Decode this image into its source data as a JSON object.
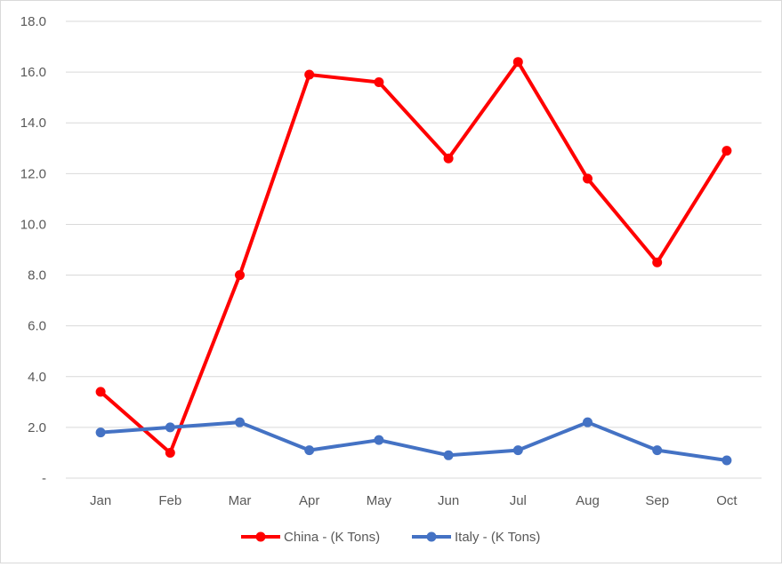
{
  "chart_data": {
    "type": "line",
    "categories": [
      "Jan",
      "Feb",
      "Mar",
      "Apr",
      "May",
      "Jun",
      "Jul",
      "Aug",
      "Sep",
      "Oct"
    ],
    "series": [
      {
        "name": "China - (K Tons)",
        "color": "#ff0000",
        "values": [
          3.4,
          1.0,
          8.0,
          15.9,
          15.6,
          12.6,
          16.4,
          11.8,
          8.5,
          12.9
        ]
      },
      {
        "name": "Italy - (K Tons)",
        "color": "#4472c4",
        "values": [
          1.8,
          2.0,
          2.2,
          1.1,
          1.5,
          0.9,
          1.1,
          2.2,
          1.1,
          0.7
        ]
      }
    ],
    "y_tick_labels": [
      "-",
      "2.0",
      "4.0",
      "6.0",
      "8.0",
      "10.0",
      "12.0",
      "14.0",
      "16.0",
      "18.0"
    ],
    "ylim": [
      0,
      18
    ],
    "grid": true,
    "legend_position": "bottom"
  }
}
